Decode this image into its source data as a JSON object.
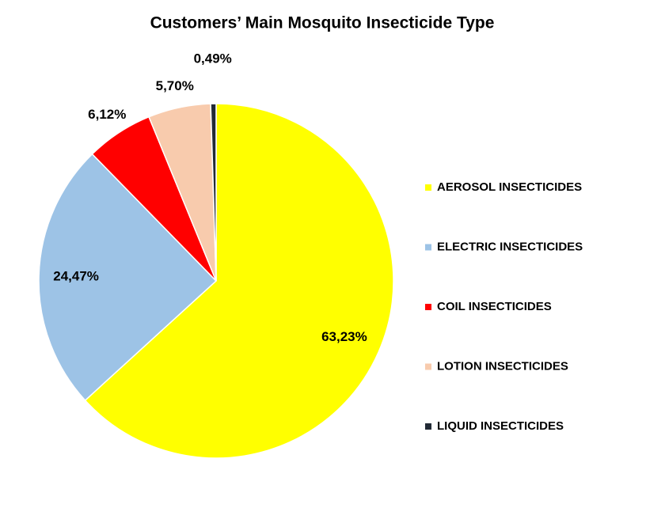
{
  "chart_data": {
    "type": "pie",
    "title": "Customers’ Main Mosquito Insecticide Type",
    "categories": [
      "AEROSOL INSECTICIDES",
      "ELECTRIC INSECTICIDES",
      "COIL INSECTICIDES",
      "LOTION INSECTICIDES",
      "LIQUID INSECTICIDES"
    ],
    "values": [
      63.23,
      24.47,
      6.12,
      5.7,
      0.49
    ],
    "value_labels": [
      "63,23%",
      "24,47%",
      "6,12%",
      "5,70%",
      "0,49%"
    ],
    "colors": [
      "#ffff00",
      "#9dc3e6",
      "#ff0000",
      "#f8cbad",
      "#222a35"
    ],
    "legend": "right"
  }
}
